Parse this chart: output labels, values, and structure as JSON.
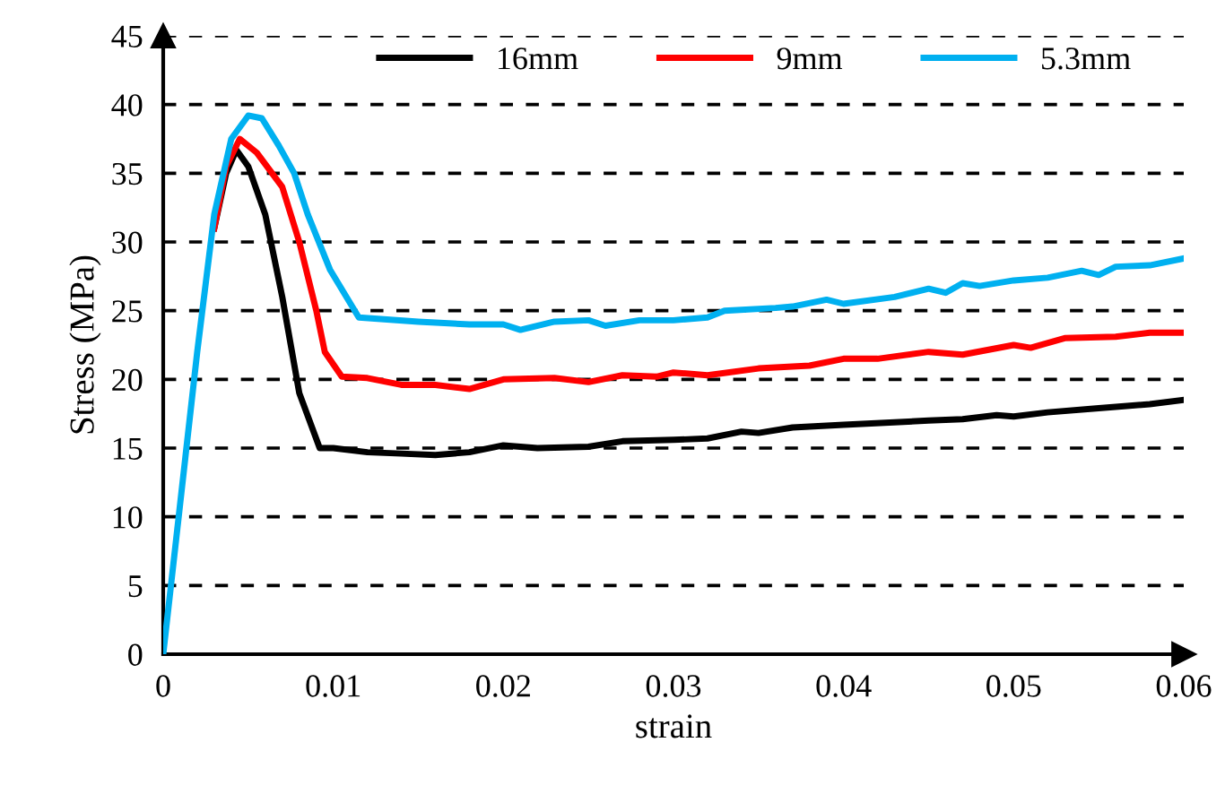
{
  "chart_data": {
    "type": "line",
    "xlabel": "strain",
    "ylabel": "Stress (MPa)",
    "xlim": [
      0,
      0.06
    ],
    "ylim": [
      0,
      45
    ],
    "xticks": [
      0,
      0.01,
      0.02,
      0.03,
      0.04,
      0.05,
      0.06
    ],
    "yticks": [
      0,
      5,
      10,
      15,
      20,
      25,
      30,
      35,
      40,
      45
    ],
    "grid": "y",
    "legend": "top",
    "marker": "none",
    "line_style": "solid",
    "series": [
      {
        "name": "16mm",
        "color": "#000000",
        "x": [
          0.003,
          0.0037,
          0.0043,
          0.005,
          0.006,
          0.007,
          0.008,
          0.0092,
          0.01,
          0.012,
          0.014,
          0.016,
          0.018,
          0.02,
          0.022,
          0.025,
          0.027,
          0.03,
          0.032,
          0.034,
          0.035,
          0.037,
          0.04,
          0.045,
          0.047,
          0.049,
          0.05,
          0.052,
          0.055,
          0.056,
          0.058,
          0.06
        ],
        "values": [
          31,
          35,
          36.7,
          35.5,
          32,
          26,
          19,
          15,
          15,
          14.7,
          14.6,
          14.5,
          14.7,
          15.2,
          15,
          15.1,
          15.5,
          15.6,
          15.7,
          16.2,
          16.1,
          16.5,
          16.7,
          17,
          17.1,
          17.4,
          17.3,
          17.6,
          17.9,
          18,
          18.2,
          18.5
        ]
      },
      {
        "name": "9mm",
        "color": "#ff0000",
        "x": [
          0.003,
          0.0037,
          0.0045,
          0.0055,
          0.007,
          0.008,
          0.009,
          0.0095,
          0.0105,
          0.012,
          0.014,
          0.016,
          0.018,
          0.02,
          0.023,
          0.025,
          0.027,
          0.029,
          0.03,
          0.032,
          0.035,
          0.038,
          0.04,
          0.042,
          0.045,
          0.047,
          0.05,
          0.051,
          0.053,
          0.056,
          0.058,
          0.06
        ],
        "values": [
          31,
          35.5,
          37.5,
          36.5,
          34,
          30,
          25,
          22,
          20.2,
          20.1,
          19.6,
          19.6,
          19.3,
          20,
          20.1,
          19.8,
          20.3,
          20.2,
          20.5,
          20.3,
          20.8,
          21,
          21.5,
          21.5,
          22,
          21.8,
          22.5,
          22.3,
          23,
          23.1,
          23.4,
          23.4
        ]
      },
      {
        "name": "5.3mm",
        "color": "#00b0f0",
        "x": [
          0,
          0.001,
          0.002,
          0.003,
          0.004,
          0.005,
          0.0058,
          0.0068,
          0.0077,
          0.0085,
          0.0098,
          0.0115,
          0.015,
          0.018,
          0.02,
          0.021,
          0.023,
          0.025,
          0.026,
          0.028,
          0.03,
          0.032,
          0.033,
          0.036,
          0.037,
          0.039,
          0.04,
          0.043,
          0.045,
          0.046,
          0.047,
          0.048,
          0.05,
          0.052,
          0.054,
          0.055,
          0.056,
          0.058,
          0.06
        ],
        "values": [
          0,
          11,
          22,
          32,
          37.5,
          39.2,
          39,
          37,
          35,
          32,
          28,
          24.5,
          24.2,
          24,
          24,
          23.6,
          24.2,
          24.3,
          23.9,
          24.3,
          24.3,
          24.5,
          25,
          25.2,
          25.3,
          25.8,
          25.5,
          26,
          26.6,
          26.3,
          27,
          26.8,
          27.2,
          27.4,
          27.9,
          27.6,
          28.2,
          28.3,
          28.8
        ]
      }
    ]
  }
}
